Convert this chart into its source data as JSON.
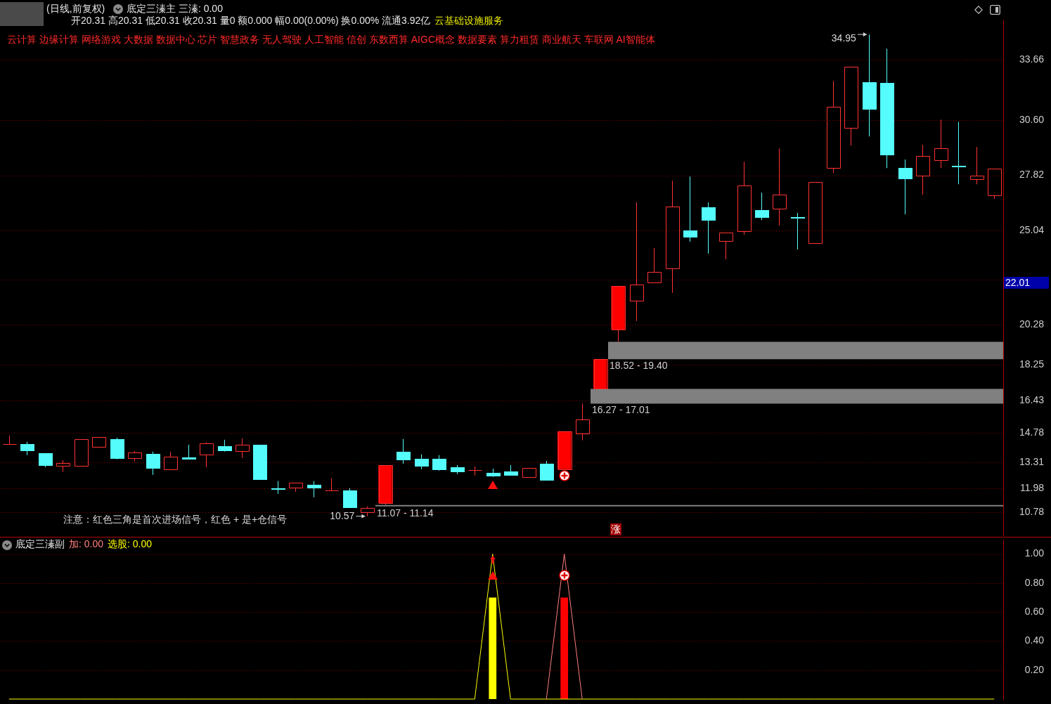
{
  "chart_data": [
    {
      "type": "candlestick",
      "title": "(日线,前复权)",
      "subtitle": "底定三溱主  三溱: 0.00",
      "categories": [
        null,
        null,
        null,
        null,
        null,
        null,
        null,
        null,
        null,
        null,
        null,
        null,
        null,
        null,
        null,
        null,
        null,
        null,
        null,
        null,
        null,
        null,
        null,
        null,
        null,
        null,
        null,
        null,
        null,
        null,
        null,
        null,
        null,
        null,
        null,
        null,
        null,
        null,
        null,
        null,
        null,
        null,
        null,
        null,
        null,
        null,
        null,
        null,
        null,
        null,
        null,
        null,
        null,
        null,
        null,
        null
      ],
      "ohlc": [
        [
          14.23,
          14.65,
          14.23,
          14.23
        ],
        [
          14.23,
          14.34,
          13.66,
          13.91
        ],
        [
          13.77,
          13.77,
          13.05,
          13.16
        ],
        [
          13.13,
          13.41,
          12.81,
          13.27
        ],
        [
          13.13,
          14.48,
          13.13,
          14.48
        ],
        [
          14.09,
          14.59,
          14.09,
          14.59
        ],
        [
          14.48,
          14.55,
          13.45,
          13.52
        ],
        [
          13.52,
          13.87,
          13.34,
          13.8
        ],
        [
          13.73,
          13.84,
          12.66,
          13.02
        ],
        [
          12.95,
          13.84,
          12.95,
          13.59
        ],
        [
          13.55,
          14.19,
          13.46,
          13.48
        ],
        [
          13.7,
          14.3,
          13.05,
          14.26
        ],
        [
          14.12,
          14.44,
          13.84,
          13.91
        ],
        [
          13.87,
          14.51,
          13.52,
          14.19
        ],
        [
          14.19,
          14.19,
          12.45,
          12.45
        ],
        [
          11.97,
          12.35,
          11.7,
          11.95
        ],
        [
          12.03,
          12.27,
          11.81,
          12.27
        ],
        [
          12.17,
          12.35,
          11.53,
          12.03
        ],
        [
          11.88,
          12.49,
          11.88,
          11.89
        ],
        [
          11.88,
          11.99,
          11.03,
          11.03
        ],
        [
          10.78,
          11.07,
          10.57,
          10.99
        ],
        [
          11.24,
          13.16,
          11.14,
          13.16
        ],
        [
          13.84,
          14.48,
          13.23,
          13.45
        ],
        [
          13.48,
          13.7,
          12.95,
          13.13
        ],
        [
          13.48,
          13.66,
          12.88,
          12.95
        ],
        [
          13.05,
          13.16,
          12.7,
          12.84
        ],
        [
          12.88,
          13.09,
          12.63,
          12.89
        ],
        [
          12.77,
          12.98,
          12.56,
          12.63
        ],
        [
          12.84,
          13.16,
          12.63,
          12.66
        ],
        [
          12.56,
          13.02,
          12.56,
          13.02
        ],
        [
          13.23,
          13.37,
          12.41,
          12.41
        ],
        [
          12.95,
          14.87,
          12.95,
          14.87
        ],
        [
          14.76,
          16.27,
          14.41,
          15.47
        ],
        [
          17.01,
          18.52,
          17.01,
          18.52
        ],
        [
          20.02,
          22.22,
          19.4,
          22.22
        ],
        [
          21.48,
          26.45,
          20.45,
          22.29
        ],
        [
          22.4,
          24.14,
          22.4,
          22.93
        ],
        [
          23.11,
          27.55,
          21.87,
          26.24
        ],
        [
          25.03,
          27.76,
          24.46,
          24.71
        ],
        [
          26.2,
          26.45,
          23.86,
          25.56
        ],
        [
          24.49,
          24.92,
          23.57,
          24.92
        ],
        [
          24.99,
          28.51,
          24.81,
          27.3
        ],
        [
          26.06,
          26.95,
          25.56,
          25.7
        ],
        [
          26.13,
          29.18,
          25.28,
          26.84
        ],
        [
          25.72,
          25.92,
          24.07,
          25.68
        ],
        [
          24.39,
          27.48,
          24.39,
          27.48
        ],
        [
          28.19,
          32.59,
          27.94,
          31.28
        ],
        [
          30.21,
          33.3,
          29.33,
          33.3
        ],
        [
          32.52,
          34.95,
          29.79,
          31.17
        ],
        [
          32.49,
          34.23,
          28.19,
          28.86
        ],
        [
          28.19,
          28.62,
          25.85,
          27.66
        ],
        [
          27.8,
          29.36,
          26.84,
          28.79
        ],
        [
          28.58,
          30.64,
          28.19,
          29.18
        ],
        [
          28.31,
          30.53,
          27.37,
          28.29
        ],
        [
          27.62,
          29.26,
          27.37,
          27.8
        ],
        [
          26.8,
          28.15,
          26.63,
          28.15
        ]
      ],
      "colors": [
        "#ff3232",
        "#54fcfc",
        "#54fcfc",
        "#ff3232",
        "#ff3232",
        "#ff3232",
        "#54fcfc",
        "#ff3232",
        "#54fcfc",
        "#ff3232",
        "#54fcfc",
        "#ff3232",
        "#54fcfc",
        "#ff3232",
        "#54fcfc",
        "#54fcfc",
        "#ff3232",
        "#54fcfc",
        "#ff3232",
        "#54fcfc",
        "#ff3232",
        "#ff3232",
        "#54fcfc",
        "#54fcfc",
        "#54fcfc",
        "#54fcfc",
        "#ff3232",
        "#54fcfc",
        "#54fcfc",
        "#ff3232",
        "#54fcfc",
        "#ff3232",
        "#ff3232",
        "#ff3232",
        "#ff3232",
        "#ff3232",
        "#ff3232",
        "#ff3232",
        "#54fcfc",
        "#54fcfc",
        "#ff3232",
        "#ff3232",
        "#54fcfc",
        "#ff3232",
        "#54fcfc",
        "#ff3232",
        "#ff3232",
        "#ff3232",
        "#54fcfc",
        "#54fcfc",
        "#54fcfc",
        "#ff3232",
        "#ff3232",
        "#54fcfc",
        "#ff3232",
        "#ff3232"
      ],
      "series": [
        {
          "type": "bar",
          "color": "#ff0000",
          "base": [
            null,
            null,
            null,
            null,
            null,
            null,
            null,
            null,
            null,
            null,
            null,
            null,
            null,
            null,
            null,
            null,
            null,
            null,
            null,
            null,
            null,
            11.24,
            null,
            null,
            null,
            null,
            null,
            null,
            null,
            null,
            null,
            12.95,
            null,
            17.01,
            20.02,
            null,
            null,
            null,
            null,
            null,
            null,
            null,
            null,
            null,
            null,
            null,
            null,
            null,
            null,
            null,
            null,
            null,
            null,
            null,
            null,
            null
          ],
          "values": [
            null,
            null,
            null,
            null,
            null,
            null,
            null,
            null,
            null,
            null,
            null,
            null,
            null,
            null,
            null,
            null,
            null,
            null,
            null,
            null,
            null,
            1.92,
            null,
            null,
            null,
            null,
            null,
            null,
            null,
            null,
            null,
            1.92,
            null,
            1.51,
            2.2,
            null,
            null,
            null,
            null,
            null,
            null,
            null,
            null,
            null,
            null,
            null,
            null,
            null,
            null,
            null,
            null,
            null,
            null,
            null,
            null,
            null
          ]
        }
      ],
      "ylim": [
        9.6,
        35.7
      ],
      "yticks": [
        10.78,
        11.98,
        13.31,
        14.78,
        16.43,
        18.25,
        20.28,
        {
          "value": 22.54,
          "label": null
        },
        25.04,
        27.82,
        {
          "value": 30.6,
          "label": "30.60"
        },
        33.66
      ],
      "tick_labels": "y",
      "grid": "y",
      "bands": [
        {
          "axis": "y",
          "from": 18.52,
          "to": 19.4,
          "label": "18.52 - 19.40",
          "color": "#808080"
        },
        {
          "axis": "y",
          "from": 16.27,
          "to": 17.01,
          "label": "16.27 - 17.01",
          "color": "#808080"
        },
        {
          "axis": "y",
          "from": 11.07,
          "to": 11.14,
          "label": "11.07 - 11.14",
          "color": "#808080"
        }
      ],
      "annotations": [
        "开20.31 高20.31 低20.31 收20.31 量0 额0.000 幅0.00(0.00%) 换0.00% 流通3.92亿",
        "云基础设施服务",
        "云计算 边缘计算 网络游戏 大数据 数据中心 芯片 智慧政务 无人驾驶 人工智能 信创 东数西算 AIGC概念 数据要素 算力租赁 商业航天 车联网 AI智能体",
        "注意：红色三角是首次进场信号，红色 + 是+仓信号",
        "涨",
        "34.95",
        "10.57",
        "22.01"
      ]
    },
    {
      "type": "line",
      "title": "底定三溱副",
      "categories": [
        null,
        null,
        null,
        null,
        null,
        null,
        null,
        null,
        null,
        null,
        null,
        null,
        null,
        null,
        null,
        null,
        null,
        null,
        null,
        null,
        null,
        null,
        null,
        null,
        null,
        null,
        null,
        null,
        null,
        null,
        null,
        null,
        null,
        null,
        null,
        null,
        null,
        null,
        null,
        null,
        null,
        null,
        null,
        null,
        null,
        null,
        null,
        null,
        null,
        null,
        null,
        null,
        null,
        null,
        null,
        null
      ],
      "series": [
        {
          "type": "line",
          "color": "#ff7f7f",
          "values": [
            null,
            null,
            null,
            null,
            null,
            null,
            null,
            null,
            null,
            null,
            null,
            null,
            null,
            null,
            null,
            null,
            null,
            null,
            null,
            null,
            null,
            null,
            null,
            null,
            null,
            null,
            null,
            null,
            null,
            null,
            0,
            1,
            0,
            null,
            null,
            null,
            null,
            null,
            null,
            null,
            null,
            null,
            null,
            null,
            null,
            null,
            null,
            null,
            null,
            null,
            null,
            null,
            null,
            null,
            null,
            null
          ]
        },
        {
          "type": "line",
          "color": "#ffff00",
          "values": [
            0,
            0,
            0,
            0,
            0,
            0,
            0,
            0,
            0,
            0,
            0,
            0,
            0,
            0,
            0,
            0,
            0,
            0,
            0,
            0,
            0,
            0,
            0,
            0,
            0,
            0,
            0,
            1,
            0,
            0,
            0,
            0,
            0,
            0,
            0,
            0,
            0,
            0,
            0,
            0,
            0,
            0,
            0,
            0,
            0,
            0,
            0,
            0,
            0,
            0,
            0,
            0,
            0,
            0,
            0,
            0
          ]
        },
        {
          "type": "bar",
          "color": "#ffff00",
          "values": [
            null,
            null,
            null,
            null,
            null,
            null,
            null,
            null,
            null,
            null,
            null,
            null,
            null,
            null,
            null,
            null,
            null,
            null,
            null,
            null,
            null,
            null,
            null,
            null,
            null,
            null,
            null,
            0.7,
            null,
            null,
            null,
            null,
            null,
            null,
            null,
            null,
            null,
            null,
            null,
            null,
            null,
            null,
            null,
            null,
            null,
            null,
            null,
            null,
            null,
            null,
            null,
            null,
            null,
            null,
            null,
            null
          ]
        },
        {
          "type": "bar",
          "color": "#ff0000",
          "values": [
            null,
            null,
            null,
            null,
            null,
            null,
            null,
            null,
            null,
            null,
            null,
            null,
            null,
            null,
            null,
            null,
            null,
            null,
            null,
            null,
            null,
            null,
            null,
            null,
            null,
            null,
            null,
            null,
            null,
            null,
            null,
            0.7,
            null,
            null,
            null,
            null,
            null,
            null,
            null,
            null,
            null,
            null,
            null,
            null,
            null,
            null,
            null,
            null,
            null,
            null,
            null,
            null,
            null,
            null,
            null,
            null
          ]
        }
      ],
      "ylim": [
        0,
        1.1
      ],
      "yticks": [
        {
          "value": 0.2,
          "label": "0.20"
        },
        {
          "value": 0.4,
          "label": "0.40"
        },
        {
          "value": 0.6,
          "label": "0.60"
        },
        {
          "value": 0.8,
          "label": "0.80"
        },
        {
          "value": 1,
          "label": "1.00"
        }
      ],
      "tick_labels": "y",
      "grid": "y",
      "annotations": [
        "加: 0.00",
        "选股: 0.00"
      ]
    }
  ]
}
